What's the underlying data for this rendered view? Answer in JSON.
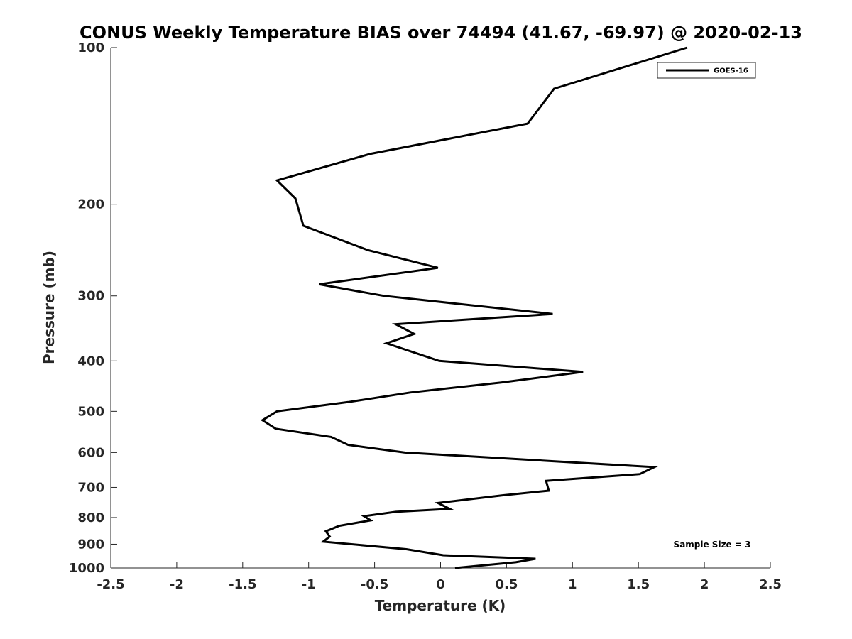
{
  "chart_data": {
    "type": "line",
    "title": "CONUS Weekly Temperature BIAS over 74494 (41.67, -69.97) @ 2020-02-13",
    "xlabel": "Temperature (K)",
    "ylabel": "Pressure (mb)",
    "xlim": [
      -2.5,
      2.5
    ],
    "ylim": [
      1000,
      100
    ],
    "y_scale": "log",
    "y_reversed": true,
    "grid": false,
    "x_ticks": [
      -2.5,
      -2,
      -1.5,
      -1,
      -0.5,
      0,
      0.5,
      1,
      1.5,
      2,
      2.5
    ],
    "x_tick_labels": [
      "-2.5",
      "-2",
      "-1.5",
      "-1",
      "-0.5",
      "0",
      "0.5",
      "1",
      "1.5",
      "2",
      "2.5"
    ],
    "y_ticks": [
      100,
      200,
      300,
      400,
      500,
      600,
      700,
      800,
      900,
      1000
    ],
    "y_tick_labels": [
      "100",
      "200",
      "300",
      "400",
      "500",
      "600",
      "700",
      "800",
      "900",
      "1000"
    ],
    "legend_position": "top-right",
    "annotation": "Sample Size = 3",
    "series": [
      {
        "name": "GOES-16",
        "color": "#000000",
        "x": [
          1.87,
          0.86,
          0.66,
          -0.53,
          -1.24,
          -1.1,
          -1.04,
          -0.55,
          -0.02,
          -0.92,
          -0.43,
          0.85,
          -0.34,
          -0.2,
          -0.41,
          -0.01,
          1.08,
          0.46,
          -0.23,
          -0.7,
          -1.24,
          -1.35,
          -1.25,
          -0.83,
          -0.7,
          -0.27,
          1.62,
          1.51,
          0.8,
          0.82,
          0.47,
          -0.02,
          0.07,
          -0.34,
          -0.58,
          -0.53,
          -0.77,
          -0.87,
          -0.84,
          -0.89,
          -0.26,
          0.02,
          0.72,
          0.57,
          0.11
        ],
        "y": [
          100,
          120,
          140,
          160,
          180,
          195,
          220,
          245,
          265,
          285,
          300,
          325,
          340,
          355,
          370,
          400,
          420,
          440,
          460,
          480,
          500,
          520,
          540,
          560,
          580,
          600,
          640,
          660,
          680,
          710,
          725,
          750,
          770,
          780,
          795,
          810,
          830,
          850,
          870,
          890,
          920,
          945,
          960,
          975,
          1000
        ]
      }
    ]
  }
}
